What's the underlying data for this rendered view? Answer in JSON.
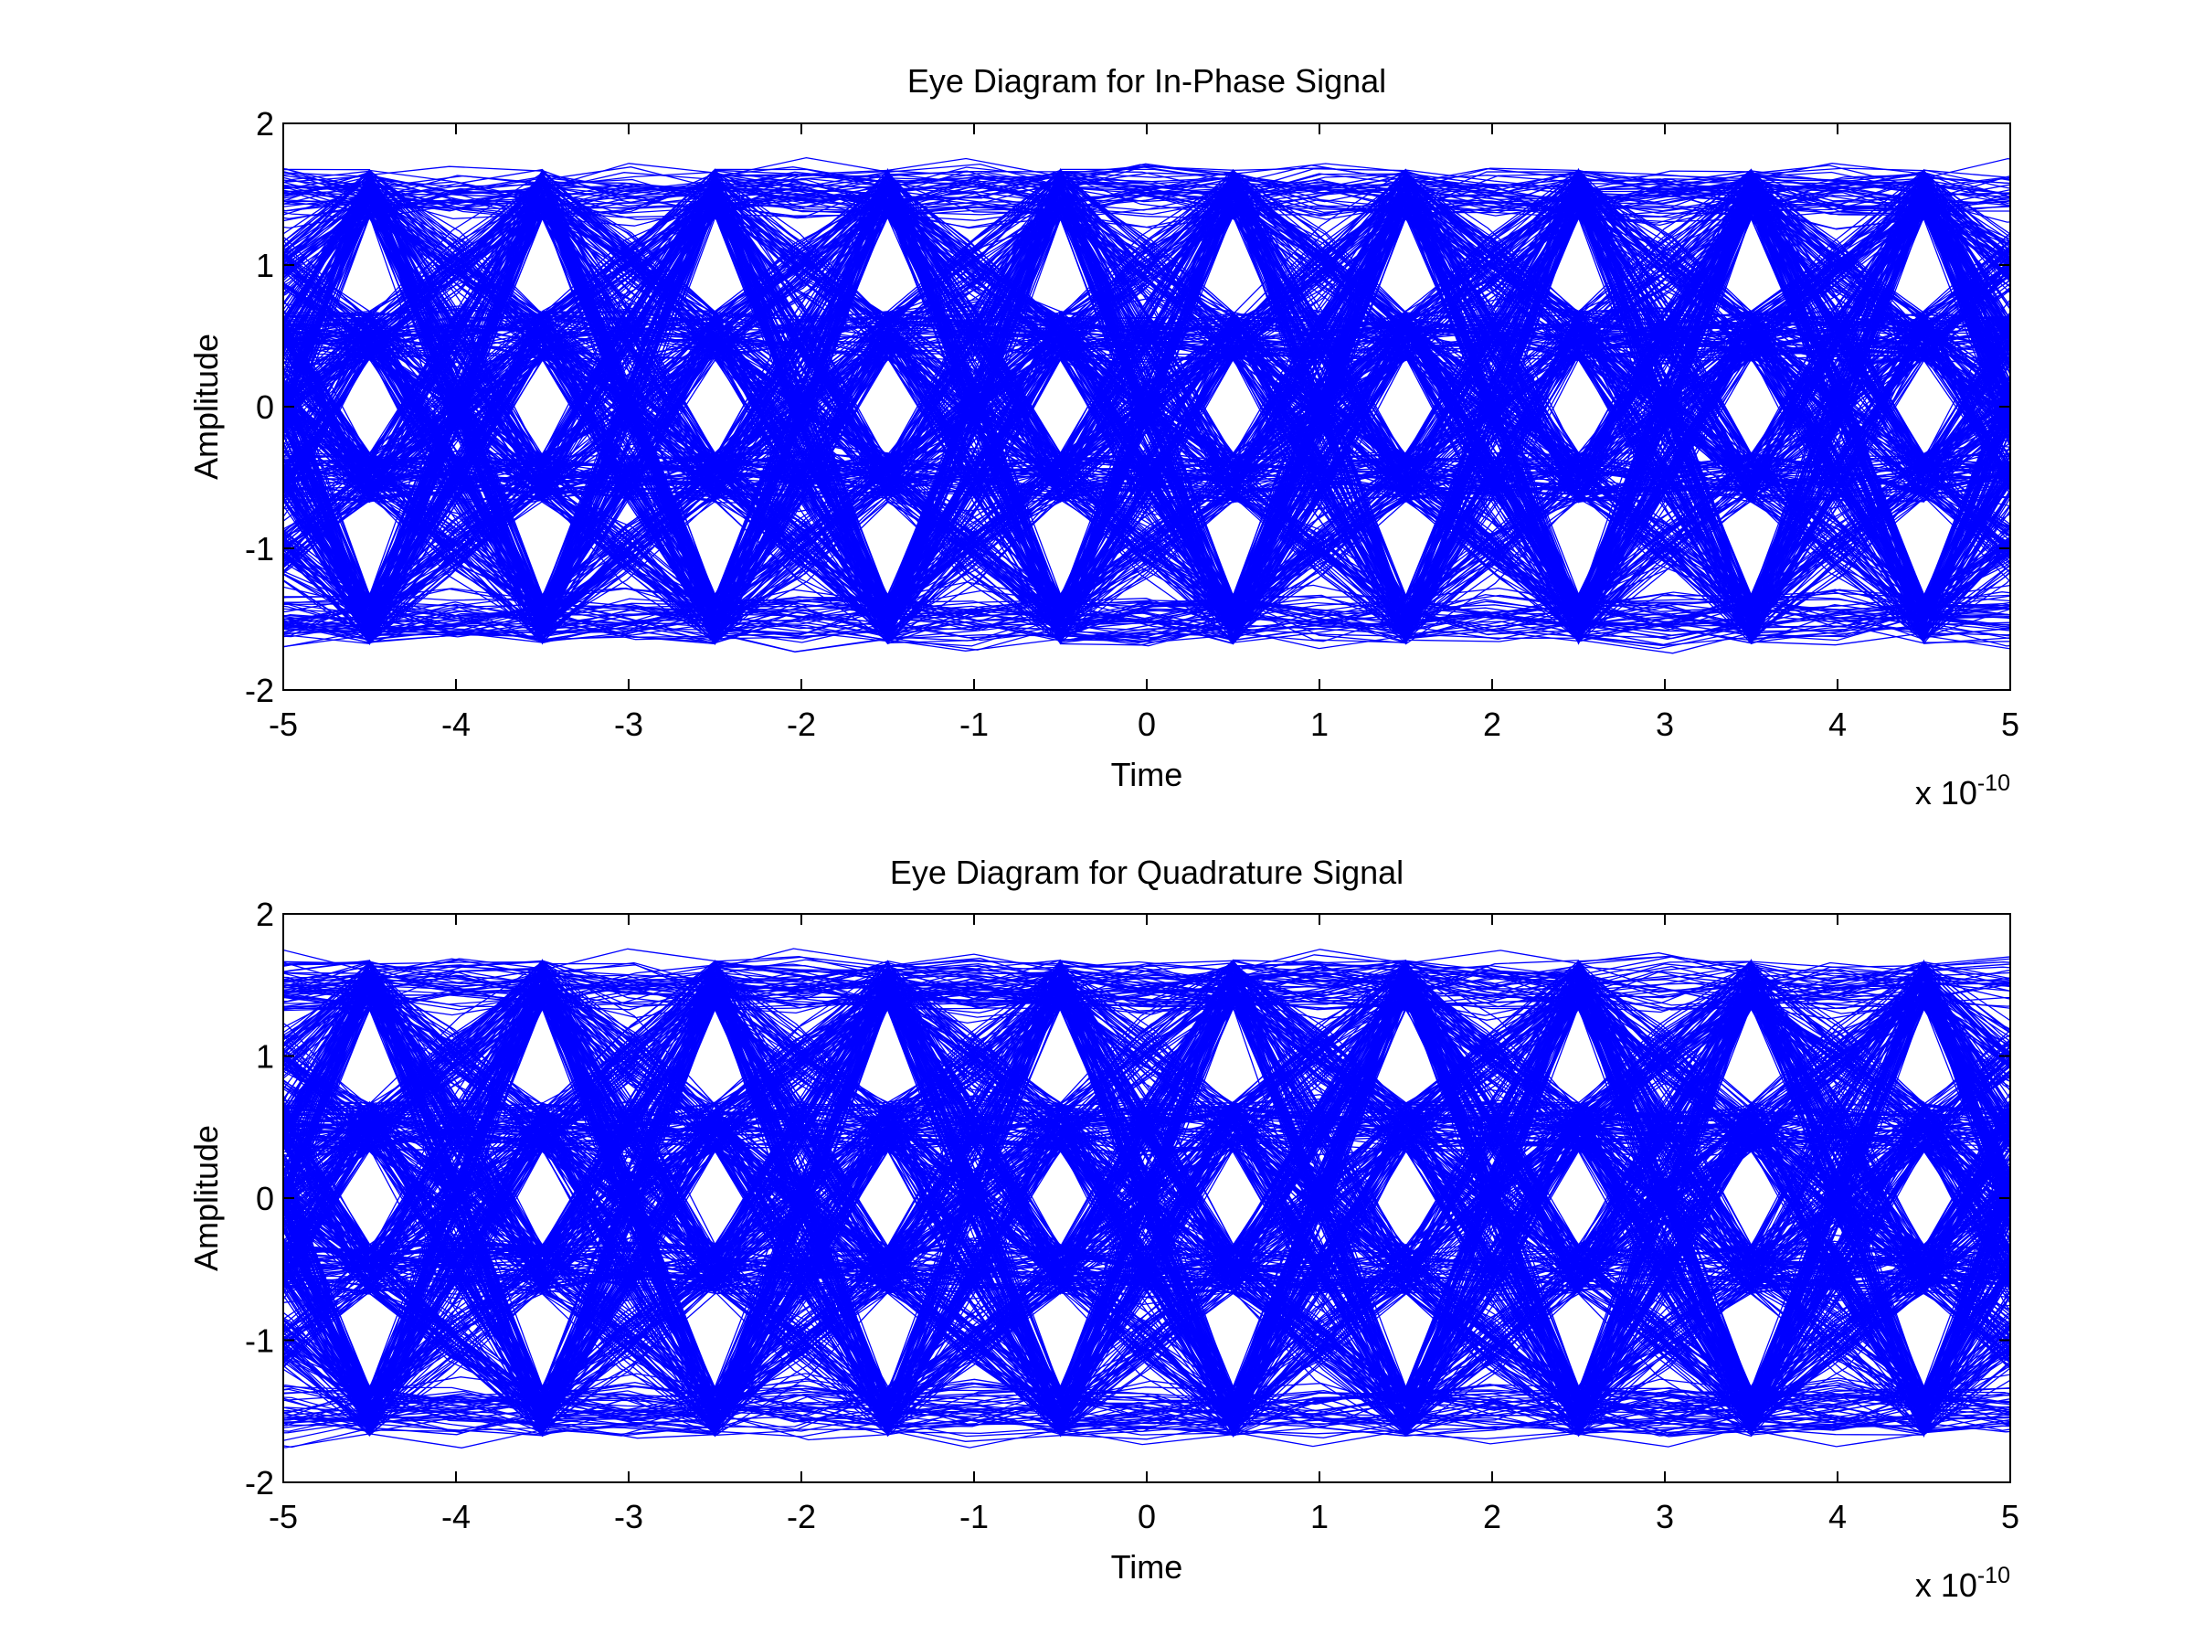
{
  "figure": {
    "background": "#ffffff",
    "trace_color": "#0000ff",
    "axis_color": "#000000"
  },
  "chart_data": [
    {
      "type": "line",
      "title": "Eye Diagram for In-Phase Signal",
      "xlabel": "Time",
      "ylabel": "Amplitude",
      "x_multiplier_label": "x 10",
      "x_multiplier_exponent": "-10",
      "xlim": [
        -5,
        5
      ],
      "ylim": [
        -2,
        2
      ],
      "xticks": [
        -5,
        -4,
        -3,
        -2,
        -1,
        0,
        1,
        2,
        3,
        4,
        5
      ],
      "yticks": [
        -2,
        -1,
        0,
        1,
        2
      ],
      "grid": false,
      "legend": "none",
      "series_color": "#0000ff",
      "symbol_levels": [
        -1.5,
        -0.5,
        0.5,
        1.5
      ],
      "eye_centers": [
        -4.5,
        -2.5,
        -0.5,
        1.5,
        3.5
      ],
      "symbol_period": 1,
      "trace_count": 700
    },
    {
      "type": "line",
      "title": "Eye Diagram for Quadrature Signal",
      "xlabel": "Time",
      "ylabel": "Amplitude",
      "x_multiplier_label": "x 10",
      "x_multiplier_exponent": "-10",
      "xlim": [
        -5,
        5
      ],
      "ylim": [
        -2,
        2
      ],
      "xticks": [
        -5,
        -4,
        -3,
        -2,
        -1,
        0,
        1,
        2,
        3,
        4,
        5
      ],
      "yticks": [
        -2,
        -1,
        0,
        1,
        2
      ],
      "grid": false,
      "legend": "none",
      "series_color": "#0000ff",
      "symbol_levels": [
        -1.5,
        -0.5,
        0.5,
        1.5
      ],
      "eye_centers": [
        -4.5,
        -2.5,
        -0.5,
        1.5,
        3.5
      ],
      "symbol_period": 1,
      "trace_count": 700
    }
  ]
}
